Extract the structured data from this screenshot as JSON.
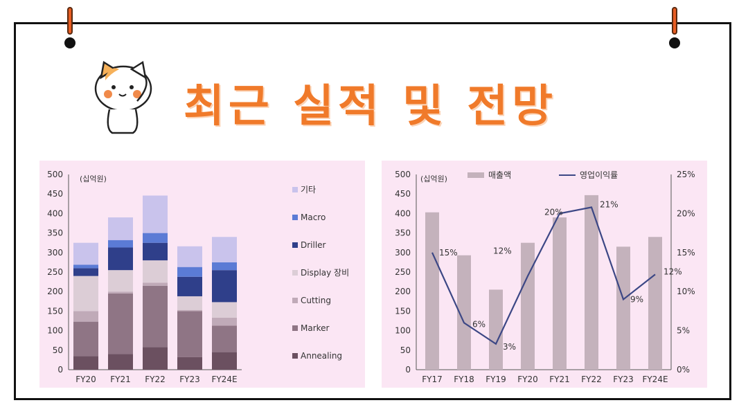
{
  "page": {
    "title": "최근 실적 및 전망",
    "colors": {
      "accent": "#f07a2a",
      "panel_bg": "#fbe6f4"
    },
    "mascot_icon": "cat-mascot-icon"
  },
  "chart_data": [
    {
      "type": "bar",
      "stacked": true,
      "unit_label": "(십억원)",
      "categories": [
        "FY20",
        "FY21",
        "FY22",
        "FY23",
        "FY24E"
      ],
      "ylim": [
        0,
        500
      ],
      "yticks": [
        0,
        50,
        100,
        150,
        200,
        250,
        300,
        350,
        400,
        450,
        500
      ],
      "legend_position": "right",
      "series": [
        {
          "name": "Annealing",
          "color": "#6b5060",
          "values": [
            35,
            40,
            58,
            32,
            45
          ]
        },
        {
          "name": "Marker",
          "color": "#8f7585",
          "values": [
            88,
            155,
            157,
            118,
            68
          ]
        },
        {
          "name": "Cutting",
          "color": "#c0aab8",
          "values": [
            27,
            5,
            8,
            3,
            20
          ]
        },
        {
          "name": "Display 장비",
          "color": "#dccdd6",
          "values": [
            90,
            55,
            57,
            35,
            40
          ]
        },
        {
          "name": "Driller",
          "color": "#2f3f8a",
          "values": [
            20,
            58,
            45,
            50,
            82
          ]
        },
        {
          "name": "Macro",
          "color": "#5b7bd5",
          "values": [
            9,
            19,
            25,
            25,
            20
          ]
        },
        {
          "name": "기타",
          "color": "#c9c3ec",
          "values": [
            56,
            58,
            96,
            53,
            65
          ]
        }
      ]
    },
    {
      "type": "bar+line",
      "unit_label": "(십억원)",
      "categories": [
        "FY17",
        "FY18",
        "FY19",
        "FY20",
        "FY21",
        "FY22",
        "FY23",
        "FY24E"
      ],
      "ylim": [
        0,
        500
      ],
      "yticks": [
        0,
        50,
        100,
        150,
        200,
        250,
        300,
        350,
        400,
        450,
        500
      ],
      "y2lim": [
        0,
        25
      ],
      "y2ticks": [
        "0%",
        "5%",
        "10%",
        "15%",
        "20%",
        "25%"
      ],
      "legend_position": "top",
      "series": [
        {
          "name": "매출액",
          "type": "bar",
          "axis": "left",
          "color": "#c4b2bc",
          "values": [
            403,
            293,
            205,
            325,
            390,
            447,
            315,
            340
          ]
        },
        {
          "name": "영업이익률",
          "type": "line",
          "axis": "right",
          "color": "#3c4785",
          "values": [
            15,
            6,
            3.3,
            12,
            20,
            20.8,
            9,
            12.2
          ],
          "labels": [
            "15%",
            "6%",
            "3%",
            "12%",
            "20%",
            "21%",
            "9%",
            "12%"
          ]
        }
      ]
    }
  ]
}
